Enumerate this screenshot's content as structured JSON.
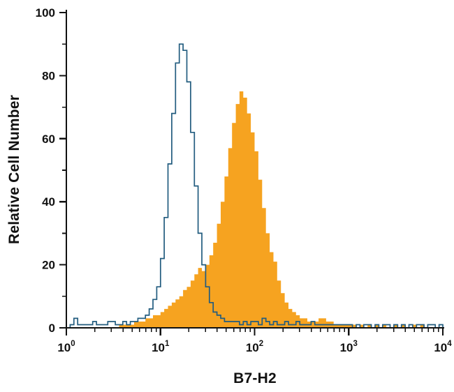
{
  "chart_data": {
    "type": "area",
    "subtype": "flow-cytometry-step-histogram",
    "title": "",
    "xlabel": "B7-H2",
    "ylabel": "Relative Cell Number",
    "x_scale": "log10",
    "x_log_range": [
      0,
      4
    ],
    "ylim": [
      0,
      100
    ],
    "grid": false,
    "legend": "none",
    "x_tick_exponents": [
      0,
      1,
      2,
      3,
      4
    ],
    "y_major_ticks": [
      0,
      20,
      40,
      60,
      80,
      100
    ],
    "y_minor_ticks": [
      10,
      30,
      50,
      70,
      90
    ],
    "bin_log_start": 0,
    "bin_log_width": 0.04,
    "colors": {
      "axis": "#111111",
      "background": "#ffffff",
      "filled_series": "#F6A320",
      "open_series": "#225C7F"
    },
    "series": [
      {
        "name": "filled orange histogram (stained)",
        "style": "filled",
        "color": "#F6A320",
        "peak": {
          "x_approx": 70,
          "y": 75
        },
        "values": [
          0,
          0,
          0,
          0,
          0,
          0,
          0,
          0,
          0,
          0,
          0,
          0,
          0,
          0,
          1,
          1,
          1,
          1,
          2,
          2,
          2,
          3,
          3,
          4,
          4,
          5,
          6,
          7,
          8,
          9,
          10,
          12,
          13,
          15,
          17,
          19,
          18,
          20,
          23,
          27,
          33,
          40,
          48,
          57,
          65,
          71,
          75,
          73,
          68,
          62,
          56,
          47,
          38,
          30,
          24,
          21,
          15,
          11,
          8,
          6,
          5,
          4,
          3,
          3,
          2,
          2,
          2,
          3,
          3,
          2,
          2,
          1,
          1,
          1,
          1,
          1,
          1,
          0,
          1,
          0,
          1,
          0,
          1,
          0,
          1,
          0,
          0,
          1,
          0,
          1,
          0,
          0,
          1,
          0,
          1,
          0,
          0,
          0,
          0,
          0
        ]
      },
      {
        "name": "open blue histogram (control)",
        "style": "outline",
        "color": "#225C7F",
        "peak": {
          "x_approx": 16,
          "y": 90
        },
        "values": [
          0,
          1,
          3,
          1,
          1,
          1,
          1,
          2,
          1,
          1,
          1,
          2,
          2,
          1,
          1,
          2,
          1,
          2,
          2,
          3,
          3,
          4,
          6,
          9,
          13,
          22,
          35,
          52,
          68,
          84,
          90,
          88,
          78,
          62,
          45,
          30,
          20,
          13,
          8,
          5,
          4,
          3,
          2,
          2,
          2,
          2,
          1,
          2,
          1,
          2,
          2,
          1,
          3,
          2,
          1,
          2,
          1,
          1,
          2,
          1,
          1,
          2,
          1,
          1,
          1,
          2,
          1,
          1,
          1,
          1,
          1,
          1,
          1,
          1,
          1,
          1,
          0,
          1,
          0,
          1,
          1,
          0,
          1,
          0,
          1,
          1,
          0,
          1,
          0,
          1,
          0,
          1,
          0,
          1,
          1,
          0,
          1,
          1,
          0,
          1
        ]
      }
    ]
  }
}
